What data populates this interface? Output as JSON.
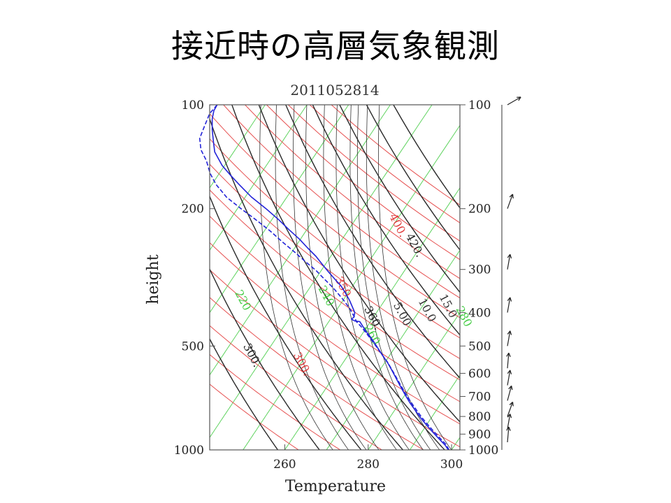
{
  "slide": {
    "title": "接近時の高層気象観測"
  },
  "chart_data": {
    "type": "line",
    "title": "2011052814",
    "xlabel": "Temperature",
    "ylabel": "height",
    "xlim": [
      242,
      302
    ],
    "ylim": [
      1000,
      100
    ],
    "y_scale": "log",
    "x_ticks": [
      260,
      280,
      300
    ],
    "y_ticks": [
      100,
      200,
      500,
      1000
    ],
    "right_y_ticks": [
      100,
      200,
      300,
      400,
      500,
      600,
      700,
      800,
      900,
      1000
    ],
    "isotherms_green": [
      200,
      210,
      220,
      230,
      240,
      250,
      260,
      270,
      280,
      290,
      300,
      310,
      320
    ],
    "dry_adiabats_red": [
      270,
      280,
      290,
      300,
      310,
      320,
      330,
      340,
      350,
      360,
      370,
      380,
      390,
      400,
      410,
      420,
      430
    ],
    "moist_adiabats_black": [
      260,
      270,
      280,
      290,
      300,
      310,
      320,
      330,
      340,
      350,
      360
    ],
    "mixing_ratio_lines": [
      0.4,
      1,
      2,
      3,
      5,
      7,
      10,
      12,
      15,
      20
    ],
    "isoline_labels": [
      {
        "text": "220",
        "color": "#44cc44",
        "at": [
          248,
          350
        ]
      },
      {
        "text": "240",
        "color": "#44cc44",
        "at": [
          268,
          340
        ]
      },
      {
        "text": "260",
        "color": "#44cc44",
        "at": [
          279,
          440
        ]
      },
      {
        "text": "280",
        "color": "#44cc44",
        "at": [
          301,
          390
        ]
      },
      {
        "text": "350",
        "color": "#e03c3c",
        "at": [
          272,
          320
        ]
      },
      {
        "text": "400.",
        "color": "#e03c3c",
        "at": [
          285,
          210
        ]
      },
      {
        "text": "300.",
        "color": "#e03c3c",
        "at": [
          262,
          530
        ]
      },
      {
        "text": "360.",
        "color": "#222222",
        "at": [
          279,
          390
        ]
      },
      {
        "text": "420.",
        "color": "#222222",
        "at": [
          289,
          240
        ]
      },
      {
        "text": "300.",
        "color": "#222222",
        "at": [
          250,
          500
        ]
      },
      {
        "text": "5.00",
        "color": "#333333",
        "at": [
          286,
          380
        ]
      },
      {
        "text": "10.0",
        "color": "#333333",
        "at": [
          292,
          370
        ]
      },
      {
        "text": "15.0",
        "color": "#333333",
        "at": [
          297,
          360
        ]
      }
    ],
    "series": [
      {
        "style": "solid",
        "color": "#2323d8",
        "points": [
          [
            243.8,
            100
          ],
          [
            243.0,
            104
          ],
          [
            242.6,
            110
          ],
          [
            242.6,
            118
          ],
          [
            242.9,
            128
          ],
          [
            243.2,
            137
          ],
          [
            245.0,
            150
          ],
          [
            247.0,
            160
          ],
          [
            249.0,
            170
          ],
          [
            252.0,
            185
          ],
          [
            255.5,
            200
          ],
          [
            258.5,
            215
          ],
          [
            261.0,
            230
          ],
          [
            263.5,
            245
          ],
          [
            265.5,
            260
          ],
          [
            267.5,
            275
          ],
          [
            269.0,
            290
          ],
          [
            270.5,
            305
          ],
          [
            272.0,
            320
          ],
          [
            273.5,
            335
          ],
          [
            274.5,
            350
          ],
          [
            275.5,
            368
          ],
          [
            276.2,
            385
          ],
          [
            276.8,
            400
          ],
          [
            276.6,
            412
          ],
          [
            276.0,
            418
          ],
          [
            276.8,
            423
          ],
          [
            278.0,
            425
          ],
          [
            278.8,
            440
          ],
          [
            279.6,
            455
          ],
          [
            280.5,
            470
          ],
          [
            281.3,
            485
          ],
          [
            282.0,
            500
          ],
          [
            282.9,
            520
          ],
          [
            283.8,
            540
          ],
          [
            284.7,
            560
          ],
          [
            285.6,
            585
          ],
          [
            286.4,
            610
          ],
          [
            287.3,
            640
          ],
          [
            288.2,
            670
          ],
          [
            289.1,
            700
          ],
          [
            290.0,
            730
          ],
          [
            291.0,
            760
          ],
          [
            292.0,
            790
          ],
          [
            293.0,
            820
          ],
          [
            294.1,
            850
          ],
          [
            295.2,
            880
          ],
          [
            296.3,
            910
          ],
          [
            297.4,
            940
          ],
          [
            298.5,
            970
          ],
          [
            299.2,
            1000
          ]
        ]
      },
      {
        "style": "dashed",
        "color": "#2323d8",
        "points": [
          [
            243.8,
            100
          ],
          [
            242.0,
            106
          ],
          [
            240.8,
            115
          ],
          [
            239.6,
            125
          ],
          [
            239.9,
            135
          ],
          [
            241.2,
            145
          ],
          [
            242.1,
            158
          ],
          [
            243.5,
            170
          ],
          [
            246.0,
            185
          ],
          [
            249.5,
            200
          ],
          [
            253.0,
            215
          ],
          [
            256.5,
            232
          ],
          [
            259.5,
            250
          ],
          [
            262.5,
            268
          ],
          [
            265.0,
            285
          ],
          [
            267.5,
            302
          ],
          [
            269.5,
            320
          ],
          [
            271.5,
            338
          ],
          [
            273.0,
            355
          ],
          [
            274.4,
            372
          ],
          [
            275.6,
            390
          ],
          [
            276.5,
            408
          ],
          [
            277.2,
            425
          ],
          [
            278.5,
            442
          ],
          [
            279.6,
            460
          ],
          [
            280.7,
            478
          ],
          [
            281.6,
            495
          ],
          [
            282.6,
            515
          ],
          [
            283.6,
            535
          ],
          [
            284.6,
            556
          ],
          [
            285.5,
            580
          ],
          [
            286.4,
            606
          ],
          [
            287.3,
            634
          ],
          [
            288.2,
            662
          ],
          [
            289.1,
            692
          ],
          [
            290.1,
            722
          ],
          [
            291.1,
            752
          ],
          [
            292.1,
            782
          ],
          [
            293.1,
            812
          ],
          [
            294.2,
            842
          ],
          [
            295.3,
            872
          ],
          [
            296.4,
            902
          ],
          [
            297.5,
            932
          ],
          [
            298.6,
            962
          ],
          [
            299.4,
            1000
          ]
        ]
      }
    ],
    "wind_barbs": [
      {
        "p": 100,
        "dir_deg": 240
      },
      {
        "p": 200,
        "dir_deg": 200
      },
      {
        "p": 300,
        "dir_deg": 190
      },
      {
        "p": 400,
        "dir_deg": 190
      },
      {
        "p": 500,
        "dir_deg": 190
      },
      {
        "p": 580,
        "dir_deg": 185
      },
      {
        "p": 650,
        "dir_deg": 190
      },
      {
        "p": 720,
        "dir_deg": 195
      },
      {
        "p": 800,
        "dir_deg": 200
      },
      {
        "p": 870,
        "dir_deg": 190
      },
      {
        "p": 950,
        "dir_deg": 185
      }
    ]
  }
}
